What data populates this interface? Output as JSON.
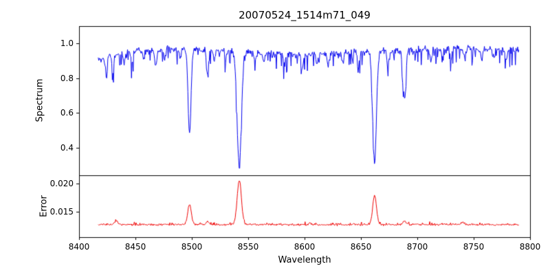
{
  "chart_data": {
    "type": "line",
    "title": "20070524_1514m71_049",
    "xlabel": "Wavelength",
    "x_range": [
      8400,
      8800
    ],
    "x_ticks": [
      {
        "value": 8400,
        "label": "8400"
      },
      {
        "value": 8450,
        "label": "8450"
      },
      {
        "value": 8500,
        "label": "8500"
      },
      {
        "value": 8550,
        "label": "8550"
      },
      {
        "value": 8600,
        "label": "8600"
      },
      {
        "value": 8650,
        "label": "8650"
      },
      {
        "value": 8700,
        "label": "8700"
      },
      {
        "value": 8750,
        "label": "8750"
      },
      {
        "value": 8800,
        "label": "8800"
      }
    ],
    "data_x_start": 8417,
    "data_x_end": 8790,
    "noise_seed": 42,
    "panels": [
      {
        "name": "spectrum",
        "ylabel": "Spectrum",
        "y_range": [
          0.24,
          1.1
        ],
        "y_ticks": [
          {
            "value": 0.4,
            "label": "0.4"
          },
          {
            "value": 0.6,
            "label": "0.6"
          },
          {
            "value": 0.8,
            "label": "0.8"
          },
          {
            "value": 1.0,
            "label": "1.0"
          }
        ],
        "line_color": "#0000ee",
        "continuum": 0.955,
        "noise_sigma": 0.014,
        "spike_prob": 0.18,
        "spike_depth": 0.09,
        "clip_max": 1.035,
        "absorption_lines": [
          {
            "center": 8498.0,
            "depth": 0.48,
            "sigma": 1.3
          },
          {
            "center": 8542.1,
            "depth": 0.66,
            "sigma": 1.9
          },
          {
            "center": 8662.1,
            "depth": 0.64,
            "sigma": 1.6
          },
          {
            "center": 8688.6,
            "depth": 0.27,
            "sigma": 1.2
          },
          {
            "center": 8424,
            "depth": 0.08,
            "sigma": 1.0
          },
          {
            "center": 8430,
            "depth": 0.1,
            "sigma": 0.8
          },
          {
            "center": 8440,
            "depth": 0.07,
            "sigma": 0.9
          },
          {
            "center": 8447,
            "depth": 0.06,
            "sigma": 0.8
          },
          {
            "center": 8457,
            "depth": 0.05,
            "sigma": 0.8
          },
          {
            "center": 8468,
            "depth": 0.09,
            "sigma": 1.0
          },
          {
            "center": 8476,
            "depth": 0.06,
            "sigma": 0.8
          },
          {
            "center": 8490,
            "depth": 0.05,
            "sigma": 0.8
          },
          {
            "center": 8514,
            "depth": 0.14,
            "sigma": 1.0
          },
          {
            "center": 8520,
            "depth": 0.06,
            "sigma": 0.8
          },
          {
            "center": 8530,
            "depth": 0.05,
            "sigma": 0.8
          },
          {
            "center": 8556,
            "depth": 0.05,
            "sigma": 0.8
          },
          {
            "center": 8564,
            "depth": 0.06,
            "sigma": 0.8
          },
          {
            "center": 8582,
            "depth": 0.07,
            "sigma": 0.9
          },
          {
            "center": 8598,
            "depth": 0.09,
            "sigma": 1.0
          },
          {
            "center": 8611,
            "depth": 0.05,
            "sigma": 0.8
          },
          {
            "center": 8621,
            "depth": 0.07,
            "sigma": 0.9
          },
          {
            "center": 8634,
            "depth": 0.05,
            "sigma": 0.8
          },
          {
            "center": 8648,
            "depth": 0.07,
            "sigma": 0.9
          },
          {
            "center": 8674,
            "depth": 0.08,
            "sigma": 0.9
          },
          {
            "center": 8712,
            "depth": 0.07,
            "sigma": 0.9
          },
          {
            "center": 8722,
            "depth": 0.05,
            "sigma": 0.8
          },
          {
            "center": 8730,
            "depth": 0.06,
            "sigma": 0.8
          },
          {
            "center": 8742,
            "depth": 0.06,
            "sigma": 0.8
          },
          {
            "center": 8757,
            "depth": 0.07,
            "sigma": 0.9
          },
          {
            "center": 8768,
            "depth": 0.05,
            "sigma": 0.8
          },
          {
            "center": 8779,
            "depth": 0.06,
            "sigma": 0.8
          }
        ]
      },
      {
        "name": "error",
        "ylabel": "Error",
        "y_range": [
          0.0105,
          0.0215
        ],
        "y_ticks": [
          {
            "value": 0.015,
            "label": "0.015"
          },
          {
            "value": 0.02,
            "label": "0.020"
          }
        ],
        "line_color": "#ee0000",
        "baseline": 0.0127,
        "noise_sigma": 0.00012,
        "spike_prob": 0.1,
        "spike_height": 0.0004,
        "peaks": [
          {
            "center": 8433,
            "height": 0.0007,
            "sigma": 1.5
          },
          {
            "center": 8498.0,
            "height": 0.0036,
            "sigma": 1.6
          },
          {
            "center": 8514,
            "height": 0.0005,
            "sigma": 1.2
          },
          {
            "center": 8542.1,
            "height": 0.0078,
            "sigma": 1.9
          },
          {
            "center": 8605,
            "height": 0.0003,
            "sigma": 1.2
          },
          {
            "center": 8662.1,
            "height": 0.0051,
            "sigma": 1.7
          },
          {
            "center": 8688.6,
            "height": 0.0007,
            "sigma": 1.3
          },
          {
            "center": 8740,
            "height": 0.0003,
            "sigma": 1.2
          }
        ]
      }
    ]
  }
}
